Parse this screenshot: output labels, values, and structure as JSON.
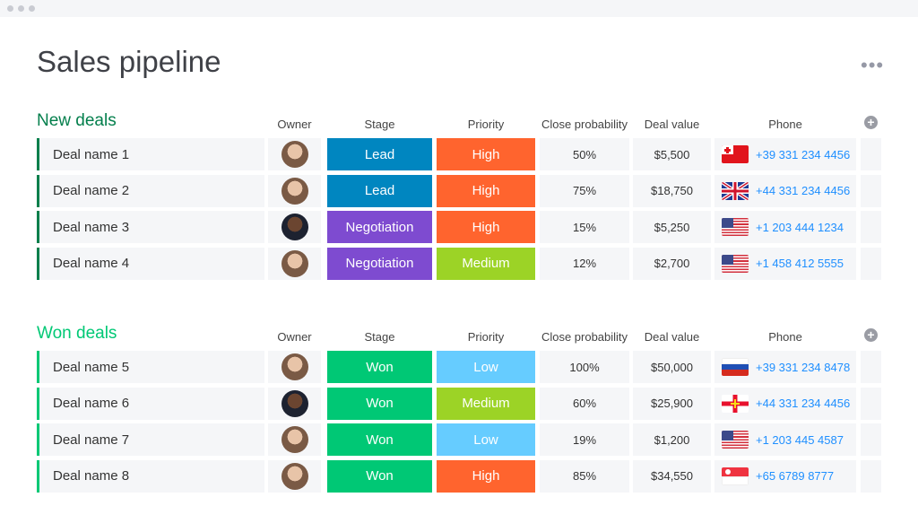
{
  "title": "Sales pipeline",
  "more_icon": "ellipsis",
  "columns": {
    "owner": "Owner",
    "stage": "Stage",
    "priority": "Priority",
    "close_probability": "Close probability",
    "deal_value": "Deal value",
    "phone": "Phone"
  },
  "colors": {
    "Lead": "#0086c0",
    "Negotiation": "#7e4bd0",
    "Won": "#00c875",
    "High": "#ff642e",
    "Medium": "#9cd326",
    "Low": "#66ccff"
  },
  "groups": [
    {
      "title": "New deals",
      "color": "#037f4c",
      "rows": [
        {
          "name": "Deal name 1",
          "owner": "avatar-woman",
          "stage": "Lead",
          "priority": "High",
          "probability": "50%",
          "value": "$5,500",
          "flag": "tonga",
          "phone": "+39 331 234 4456"
        },
        {
          "name": "Deal name 2",
          "owner": "avatar-woman",
          "stage": "Lead",
          "priority": "High",
          "probability": "75%",
          "value": "$18,750",
          "flag": "uk",
          "phone": "+44 331 234 4456"
        },
        {
          "name": "Deal name 3",
          "owner": "avatar-man-dark",
          "stage": "Negotiation",
          "priority": "High",
          "probability": "15%",
          "value": "$5,250",
          "flag": "us",
          "phone": "+1 203 444 1234"
        },
        {
          "name": "Deal name 4",
          "owner": "avatar-man",
          "stage": "Negotiation",
          "priority": "Medium",
          "probability": "12%",
          "value": "$2,700",
          "flag": "us",
          "phone": "+1 458 412 5555"
        }
      ]
    },
    {
      "title": "Won deals",
      "color": "#00c875",
      "rows": [
        {
          "name": "Deal name 5",
          "owner": "avatar-man",
          "stage": "Won",
          "priority": "Low",
          "probability": "100%",
          "value": "$50,000",
          "flag": "russia",
          "phone": "+39 331 234 8478"
        },
        {
          "name": "Deal name 6",
          "owner": "avatar-man-dark",
          "stage": "Won",
          "priority": "Medium",
          "probability": "60%",
          "value": "$25,900",
          "flag": "guernsey",
          "phone": "+44 331 234 4456"
        },
        {
          "name": "Deal name 7",
          "owner": "avatar-woman",
          "stage": "Won",
          "priority": "Low",
          "probability": "19%",
          "value": "$1,200",
          "flag": "us",
          "phone": "+1 203 445 4587"
        },
        {
          "name": "Deal name 8",
          "owner": "avatar-woman",
          "stage": "Won",
          "priority": "High",
          "probability": "85%",
          "value": "$34,550",
          "flag": "singapore",
          "phone": "+65 6789 8777"
        }
      ]
    }
  ]
}
